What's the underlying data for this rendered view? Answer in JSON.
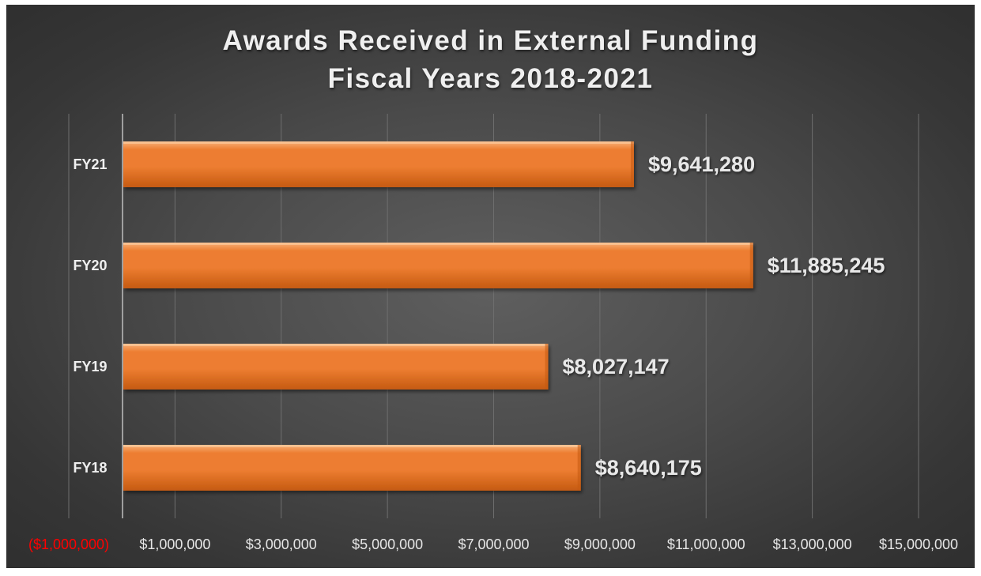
{
  "chart_data": {
    "type": "bar",
    "orientation": "horizontal",
    "title": [
      "Awards Received in External Funding",
      "Fiscal Years 2018-2021"
    ],
    "categories": [
      "FY21",
      "FY20",
      "FY19",
      "FY18"
    ],
    "values": [
      9641280,
      11885245,
      8027147,
      8640175
    ],
    "data_labels": [
      "$9,641,280",
      "$11,885,245",
      "$8,027,147",
      "$8,640,175"
    ],
    "xlim": [
      -1000000,
      15000000
    ],
    "x_ticks": [
      -1000000,
      1000000,
      3000000,
      5000000,
      7000000,
      9000000,
      11000000,
      13000000,
      15000000
    ],
    "x_tick_labels": [
      "($1,000,000)",
      "$1,000,000",
      "$3,000,000",
      "$5,000,000",
      "$7,000,000",
      "$9,000,000",
      "$11,000,000",
      "$13,000,000",
      "$15,000,000"
    ],
    "grid": true,
    "legend": "none",
    "colors": {
      "bar": "#ed7d31",
      "bar_light": "#f7b27a",
      "bar_dark": "#c55a11",
      "negative_tick": "#ff0000",
      "tick": "#e6e6e6",
      "gridline": "#6e6e6e",
      "axis": "#bfbfbf"
    }
  }
}
